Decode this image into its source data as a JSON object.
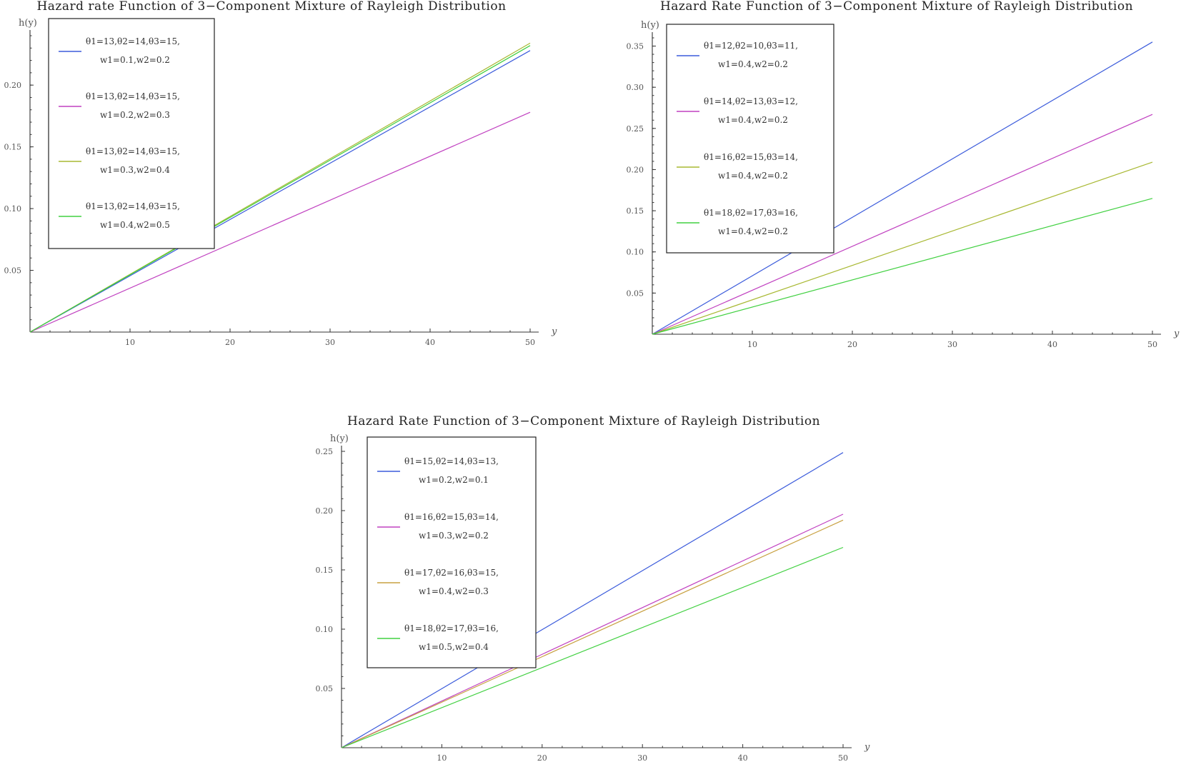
{
  "chart_data": [
    {
      "type": "line",
      "title": "Hazard rate Function of 3−Component Mixture of Rayleigh Distribution",
      "xlabel": "y",
      "ylabel": "h(y)",
      "xlim": [
        0,
        50
      ],
      "ylim": [
        0,
        0.24
      ],
      "xticks": [
        10,
        20,
        30,
        40,
        50
      ],
      "yticks": [
        0.05,
        0.1,
        0.15,
        0.2
      ],
      "legend_position": "top-left",
      "series": [
        {
          "name_line1": "θ1=13,θ2=14,θ3=15,",
          "name_line2": "w1=0.1,w2=0.2",
          "color": "#3b5bdb",
          "x": [
            0,
            50
          ],
          "y": [
            0,
            0.228
          ]
        },
        {
          "name_line1": "θ1=13,θ2=14,θ3=15,",
          "name_line2": "w1=0.2,w2=0.3",
          "color": "#c040c0",
          "x": [
            0,
            50
          ],
          "y": [
            0,
            0.178
          ]
        },
        {
          "name_line1": "θ1=13,θ2=14,θ3=15,",
          "name_line2": "w1=0.3,w2=0.4",
          "color": "#a8b832",
          "x": [
            0,
            50
          ],
          "y": [
            0,
            0.234
          ]
        },
        {
          "name_line1": "θ1=13,θ2=14,θ3=15,",
          "name_line2": "w1=0.4,w2=0.5",
          "color": "#40d040",
          "x": [
            0,
            50
          ],
          "y": [
            0,
            0.232
          ]
        }
      ]
    },
    {
      "type": "line",
      "title": "Hazard Rate Function of 3−Component Mixture of Rayleigh Distribution",
      "xlabel": "y",
      "ylabel": "h(y)",
      "xlim": [
        0,
        50
      ],
      "ylim": [
        0,
        0.36
      ],
      "xticks": [
        10,
        20,
        30,
        40,
        50
      ],
      "yticks": [
        0.05,
        0.1,
        0.15,
        0.2,
        0.25,
        0.3,
        0.35
      ],
      "legend_position": "top-left",
      "series": [
        {
          "name_line1": "θ1=12,θ2=10,θ3=11,",
          "name_line2": "w1=0.4,w2=0.2",
          "color": "#3b5bdb",
          "x": [
            0,
            50
          ],
          "y": [
            0,
            0.355
          ]
        },
        {
          "name_line1": "θ1=14,θ2=13,θ3=12,",
          "name_line2": "w1=0.4,w2=0.2",
          "color": "#c040c0",
          "x": [
            0,
            50
          ],
          "y": [
            0,
            0.267
          ]
        },
        {
          "name_line1": "θ1=16,θ2=15,θ3=14,",
          "name_line2": "w1=0.4,w2=0.2",
          "color": "#a8b832",
          "x": [
            0,
            50
          ],
          "y": [
            0,
            0.209
          ]
        },
        {
          "name_line1": "θ1=18,θ2=17,θ3=16,",
          "name_line2": "w1=0.4,w2=0.2",
          "color": "#40d040",
          "x": [
            0,
            50
          ],
          "y": [
            0,
            0.165
          ]
        }
      ]
    },
    {
      "type": "line",
      "title": "Hazard Rate Function of 3−Component Mixture of Rayleigh Distribution",
      "xlabel": "y",
      "ylabel": "h(y)",
      "xlim": [
        0,
        50
      ],
      "ylim": [
        0,
        0.25
      ],
      "xticks": [
        10,
        20,
        30,
        40,
        50
      ],
      "yticks": [
        0.05,
        0.1,
        0.15,
        0.2,
        0.25
      ],
      "legend_position": "top-left",
      "series": [
        {
          "name_line1": "θ1=15,θ2=14,θ3=13,",
          "name_line2": "w1=0.2,w2=0.1",
          "color": "#3b5bdb",
          "x": [
            0,
            50
          ],
          "y": [
            0,
            0.249
          ]
        },
        {
          "name_line1": "θ1=16,θ2=15,θ3=14,",
          "name_line2": "w1=0.3,w2=0.2",
          "color": "#c040c0",
          "x": [
            0,
            50
          ],
          "y": [
            0,
            0.197
          ]
        },
        {
          "name_line1": "θ1=17,θ2=16,θ3=15,",
          "name_line2": "w1=0.4,w2=0.3",
          "color": "#c8a040",
          "x": [
            0,
            50
          ],
          "y": [
            0,
            0.192
          ]
        },
        {
          "name_line1": "θ1=18,θ2=17,θ3=16,",
          "name_line2": "w1=0.5,w2=0.4",
          "color": "#40d040",
          "x": [
            0,
            50
          ],
          "y": [
            0,
            0.169
          ]
        }
      ]
    }
  ]
}
